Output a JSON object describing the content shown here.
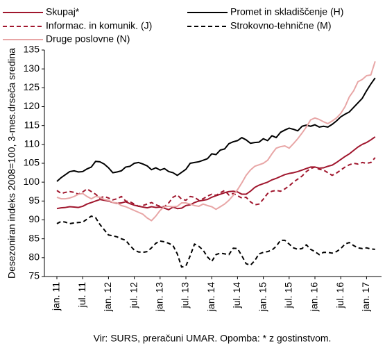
{
  "chart_data": {
    "type": "line",
    "y_label": "Desezoniran indeks 2008=100, 3-mes.drseča sredina",
    "source": "Vir: SURS, preračuni UMAR. Opomba: * z gostinstvom.",
    "legend": "top",
    "categories": [
      "jan. 11",
      null,
      null,
      null,
      null,
      null,
      "jul. 11",
      null,
      null,
      null,
      null,
      null,
      "jan. 12",
      null,
      null,
      null,
      null,
      null,
      "jul. 12",
      null,
      null,
      null,
      null,
      null,
      "jan. 13",
      null,
      null,
      null,
      null,
      null,
      "jul. 13",
      null,
      null,
      null,
      null,
      null,
      "jan. 14",
      null,
      null,
      null,
      null,
      null,
      "jul. 14",
      null,
      null,
      null,
      null,
      null,
      "jan. 15",
      null,
      null,
      null,
      null,
      null,
      "jul. 15",
      null,
      null,
      null,
      null,
      null,
      "jan. 16",
      null,
      null,
      null,
      null,
      null,
      "jul. 16",
      null,
      null,
      null,
      null,
      null,
      "jan. 17",
      null,
      null
    ],
    "ylim": [
      75,
      135
    ],
    "yticks": [
      75,
      80,
      85,
      90,
      95,
      100,
      105,
      110,
      115,
      120,
      125,
      130,
      135
    ],
    "series": [
      {
        "name": "Skupaj*",
        "color": "#a0162d",
        "dashed": false,
        "values": [
          93,
          93.2,
          93.3,
          93.5,
          93.4,
          93.3,
          93.6,
          94.2,
          94.6,
          95,
          95.4,
          95.2,
          95,
          94.6,
          94.4,
          94.5,
          94.8,
          94.3,
          93.9,
          93.6,
          93.4,
          93.2,
          93.5,
          93.3,
          93.4,
          93.1,
          92.7,
          93.4,
          93,
          93.1,
          93.8,
          94,
          94.6,
          95,
          95.2,
          95.4,
          96,
          96.4,
          96.8,
          97.2,
          97.5,
          97.6,
          97.4,
          96.8,
          96.8,
          97.6,
          98.6,
          99.2,
          99.6,
          100,
          100.6,
          101,
          101.5,
          102,
          102.3,
          102.5,
          102.8,
          103.2,
          103.6,
          104,
          104,
          103.7,
          103.8,
          104.2,
          104.5,
          105.2,
          106,
          106.8,
          107.5,
          108.4,
          109.3,
          110,
          110.5,
          111.2,
          112
        ]
      },
      {
        "name": "Promet in skladiščenje (H)",
        "color": "#000000",
        "dashed": false,
        "values": [
          100.2,
          101.2,
          102,
          102.8,
          103,
          102.7,
          102.8,
          103.5,
          104,
          105.5,
          105.4,
          104.8,
          103.8,
          102.5,
          102.7,
          103,
          104,
          104.2,
          105,
          105.2,
          104.8,
          104.3,
          103.3,
          103.8,
          103.2,
          103.6,
          102.8,
          102.5,
          101.8,
          102.6,
          103.4,
          105,
          105.2,
          105.4,
          105.8,
          106.2,
          107.5,
          107.3,
          108.5,
          108.8,
          110.2,
          110.7,
          111,
          111.8,
          111.2,
          110.3,
          110.5,
          110.6,
          111.5,
          111,
          112.3,
          111.8,
          113.2,
          113.8,
          114.3,
          114,
          113.6,
          114.8,
          115.1,
          114.8,
          115.2,
          114.6,
          114.8,
          114.6,
          115.3,
          116.2,
          117.3,
          118,
          118.6,
          119.8,
          121,
          122.2,
          124.2,
          126,
          127.6
        ]
      },
      {
        "name": "Informac. in komunik. (J)",
        "color": "#a0162d",
        "dashed": true,
        "values": [
          97.8,
          97,
          97.3,
          97.5,
          97.3,
          96.8,
          97.4,
          98.2,
          97.5,
          96.8,
          95.8,
          96.2,
          95.8,
          95.3,
          95.6,
          96.2,
          95,
          94.8,
          94.2,
          93.6,
          93.8,
          94.2,
          94.6,
          94,
          93.6,
          93.5,
          94.5,
          96,
          96.6,
          95.5,
          95.2,
          96.2,
          96,
          95.2,
          95.6,
          96.3,
          96.8,
          96.5,
          97.2,
          97.8,
          96.6,
          97,
          96.4,
          95.8,
          96,
          94.8,
          94,
          94.2,
          95.5,
          97,
          97.6,
          97.8,
          97.6,
          98.2,
          99,
          100,
          100.8,
          101.6,
          102.8,
          103.6,
          104,
          103.4,
          103.2,
          102.5,
          101.8,
          102.4,
          103.2,
          104,
          104.6,
          105,
          104.8,
          105.2,
          105,
          105.2,
          106.5
        ]
      },
      {
        "name": "Strokovno-tehnične (M)",
        "color": "#000000",
        "dashed": true,
        "values": [
          89,
          89.6,
          89.4,
          89,
          89.2,
          89.3,
          89.4,
          90.2,
          91,
          90.6,
          88.8,
          87.4,
          86,
          85.8,
          85.5,
          85,
          84.6,
          83.2,
          82,
          81.5,
          81.4,
          81.6,
          82.6,
          83.8,
          84.4,
          84.2,
          83.8,
          83.2,
          81,
          77.5,
          77.8,
          80.5,
          83.6,
          83,
          82,
          80.2,
          79,
          80.8,
          81.2,
          81,
          80.8,
          82.5,
          82.4,
          80.5,
          78.4,
          78,
          79.2,
          81,
          81.4,
          81.6,
          82,
          83,
          84.6,
          84.6,
          83.6,
          82.6,
          82.2,
          82.4,
          83.4,
          82.2,
          81.6,
          80.8,
          81.4,
          81.4,
          81.2,
          81.6,
          82.4,
          83.6,
          84,
          83.2,
          82.6,
          82.4,
          82.6,
          82.3,
          82.2
        ]
      },
      {
        "name": "Druge poslovne (N)",
        "color": "#e8a6a6",
        "dashed": false,
        "values": [
          96,
          95.6,
          95.6,
          95.8,
          96.2,
          96.8,
          97,
          96.2,
          95.6,
          96.2,
          96,
          95.4,
          95.2,
          94.6,
          94.5,
          93.8,
          93.5,
          93,
          92.5,
          92,
          91.5,
          90.5,
          89.8,
          91,
          92.5,
          93.5,
          93.6,
          93.5,
          93.6,
          94.5,
          94.5,
          94.2,
          93.8,
          93.6,
          94.2,
          93.8,
          93.5,
          92.8,
          93.5,
          94.2,
          95.2,
          96.5,
          98,
          99.8,
          101.8,
          103.2,
          104.2,
          104.6,
          105,
          105.8,
          107.5,
          109,
          109.4,
          109.6,
          109,
          110.2,
          111.5,
          113,
          114.6,
          116.5,
          117,
          116.6,
          116,
          115.5,
          116.2,
          117,
          118.2,
          120,
          122.6,
          124.2,
          126.6,
          127.2,
          128.2,
          128.4,
          132
        ]
      }
    ]
  }
}
